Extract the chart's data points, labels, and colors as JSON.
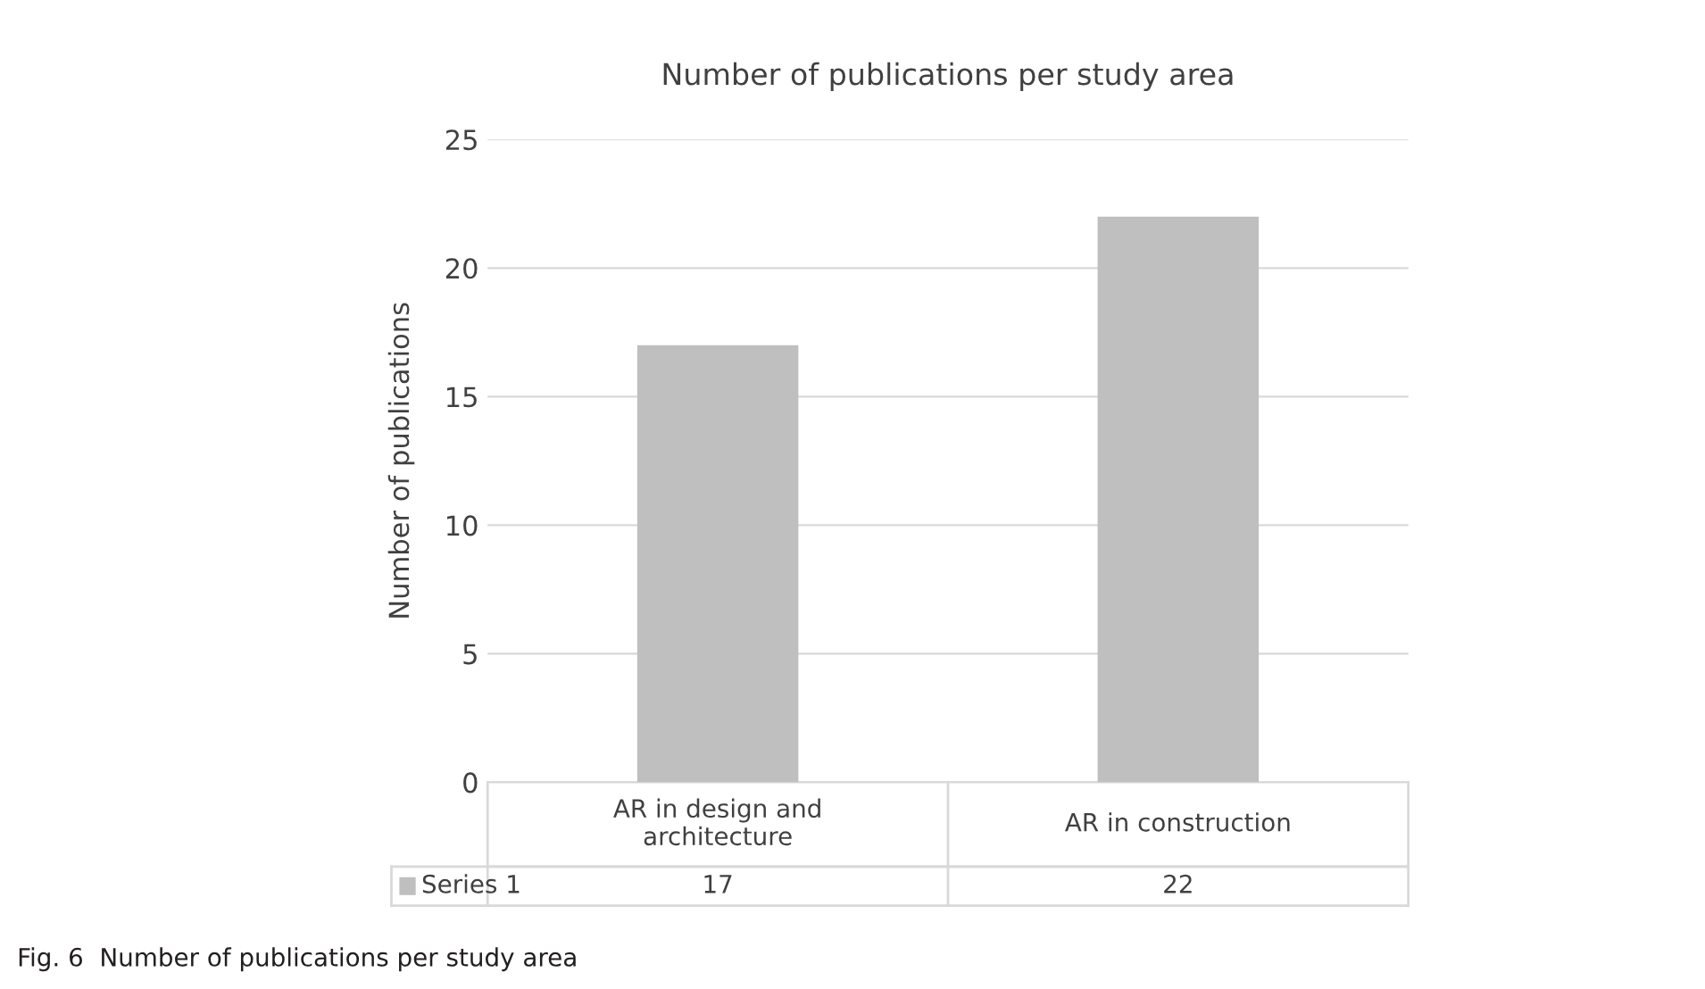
{
  "chart_data": {
    "type": "bar",
    "title": "Number of publications per study area",
    "ylabel": "Number of publications",
    "categories": [
      "AR in design and\narchitecture",
      "AR in construction"
    ],
    "series": [
      {
        "name": "Series 1",
        "color": "#bfbfbf",
        "values": [
          17,
          22
        ]
      }
    ],
    "ylim": [
      0,
      25
    ],
    "yticks": [
      0,
      5,
      10,
      15,
      20,
      25
    ],
    "grid": "y",
    "legend": "bottom",
    "data_labels": true,
    "annotations": [
      "Fig. 6  Number of publications per study area"
    ]
  }
}
